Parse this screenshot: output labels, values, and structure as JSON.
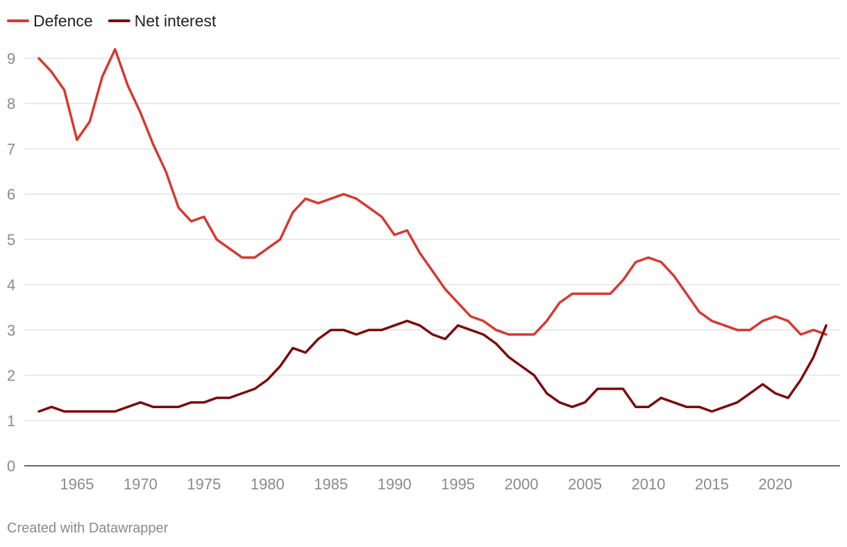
{
  "chart_data": {
    "type": "line",
    "title": "",
    "xlabel": "",
    "ylabel": "",
    "ylim": [
      0,
      9
    ],
    "xlim": [
      1962,
      2024
    ],
    "y_ticks": [
      0,
      1,
      2,
      3,
      4,
      5,
      6,
      7,
      8,
      9
    ],
    "x_ticks": [
      1965,
      1970,
      1975,
      1980,
      1985,
      1990,
      1995,
      2000,
      2005,
      2010,
      2015,
      2020
    ],
    "grid": true,
    "legend_position": "top-left",
    "x": [
      1962,
      1963,
      1964,
      1965,
      1966,
      1967,
      1968,
      1969,
      1970,
      1971,
      1972,
      1973,
      1974,
      1975,
      1976,
      1977,
      1978,
      1979,
      1980,
      1981,
      1982,
      1983,
      1984,
      1985,
      1986,
      1987,
      1988,
      1989,
      1990,
      1991,
      1992,
      1993,
      1994,
      1995,
      1996,
      1997,
      1998,
      1999,
      2000,
      2001,
      2002,
      2003,
      2004,
      2005,
      2006,
      2007,
      2008,
      2009,
      2010,
      2011,
      2012,
      2013,
      2014,
      2015,
      2016,
      2017,
      2018,
      2019,
      2020,
      2021,
      2022,
      2023,
      2024
    ],
    "series": [
      {
        "name": "Defence",
        "color": "#d7382f",
        "values": [
          9.0,
          8.7,
          8.3,
          7.2,
          7.6,
          8.6,
          9.2,
          8.4,
          7.8,
          7.1,
          6.5,
          5.7,
          5.4,
          5.5,
          5.0,
          4.8,
          4.6,
          4.6,
          4.8,
          5.0,
          5.6,
          5.9,
          5.8,
          5.9,
          6.0,
          5.9,
          5.7,
          5.5,
          5.1,
          5.2,
          4.7,
          4.3,
          3.9,
          3.6,
          3.3,
          3.2,
          3.0,
          2.9,
          2.9,
          2.9,
          3.2,
          3.6,
          3.8,
          3.8,
          3.8,
          3.8,
          4.1,
          4.5,
          4.6,
          4.5,
          4.2,
          3.8,
          3.4,
          3.2,
          3.1,
          3.0,
          3.0,
          3.2,
          3.3,
          3.2,
          2.9,
          3.0,
          2.9
        ]
      },
      {
        "name": "Net interest",
        "color": "#7d0a0a",
        "values": [
          1.2,
          1.3,
          1.2,
          1.2,
          1.2,
          1.2,
          1.2,
          1.3,
          1.4,
          1.3,
          1.3,
          1.3,
          1.4,
          1.4,
          1.5,
          1.5,
          1.6,
          1.7,
          1.9,
          2.2,
          2.6,
          2.5,
          2.8,
          3.0,
          3.0,
          2.9,
          3.0,
          3.0,
          3.1,
          3.2,
          3.1,
          2.9,
          2.8,
          3.1,
          3.0,
          2.9,
          2.7,
          2.4,
          2.2,
          2.0,
          1.6,
          1.4,
          1.3,
          1.4,
          1.7,
          1.7,
          1.7,
          1.3,
          1.3,
          1.5,
          1.4,
          1.3,
          1.3,
          1.2,
          1.3,
          1.4,
          1.6,
          1.8,
          1.6,
          1.5,
          1.9,
          2.4,
          3.1
        ]
      }
    ]
  },
  "footer": {
    "credit": "Created with Datawrapper"
  }
}
